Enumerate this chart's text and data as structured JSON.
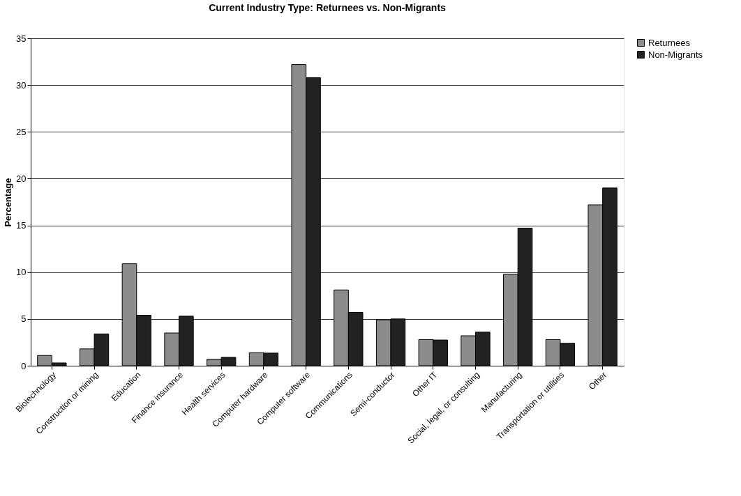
{
  "chart_data": {
    "type": "bar",
    "title": "Current Industry Type: Returnees vs. Non-Migrants",
    "ylabel": "Percentage",
    "categories": [
      "Biotechnology",
      "Construction or mining",
      "Education",
      "Finance insurance",
      "Health services",
      "Computer hardware",
      "Computer software",
      "Communications",
      "Semi-conductor",
      "Other IT",
      "Social, legal, or consulting",
      "Manufacturing",
      "Transportation or utilities",
      "Other"
    ],
    "series": [
      {
        "name": "Returnees",
        "color": "#8c8c8c",
        "values": [
          1.1,
          1.8,
          10.9,
          3.5,
          0.7,
          1.4,
          32.2,
          8.1,
          4.9,
          2.8,
          3.2,
          9.8,
          2.8,
          17.2
        ]
      },
      {
        "name": "Non-Migrants",
        "color": "#222222",
        "values": [
          0.3,
          3.4,
          5.4,
          5.3,
          0.9,
          1.35,
          30.8,
          5.7,
          5.0,
          2.75,
          3.6,
          14.7,
          2.4,
          19.0
        ]
      }
    ],
    "ylim": [
      0,
      35
    ],
    "yticks": [
      0,
      5,
      10,
      15,
      20,
      25,
      30,
      35
    ],
    "grid": "y",
    "legend": "right"
  }
}
